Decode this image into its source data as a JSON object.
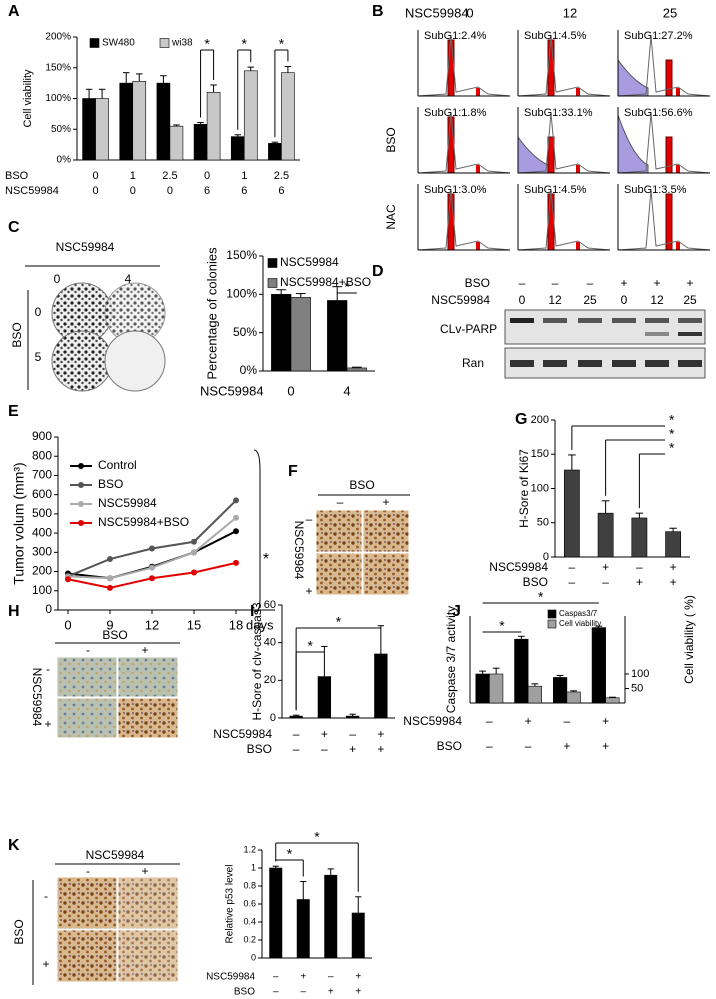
{
  "panels": [
    "A",
    "B",
    "C",
    "D",
    "E",
    "F",
    "G",
    "H",
    "I",
    "J",
    "K"
  ],
  "flow_cytometry": {
    "treatment": "NSC59984",
    "doses": [
      0,
      12,
      25
    ],
    "row_labels": [
      "BSO",
      "NAC"
    ],
    "subg1": [
      [
        "SubG1:2.4%",
        "SubG1:4.5%",
        "SubG1:27.2%"
      ],
      [
        "SubG1:1.8%",
        "SubG1:33.1%",
        "SubG1:56.6%"
      ],
      [
        "SubG1:3.0%",
        "SubG1:4.5%",
        "SubG1:3.5%"
      ]
    ]
  },
  "colony_images": {
    "top_label": "NSC59984",
    "col_labels": [
      0,
      4
    ],
    "side_label": "BSO",
    "row_labels": [
      0,
      5
    ]
  },
  "western_blot": {
    "rows": [
      {
        "label": "BSO",
        "values": [
          "–",
          "–",
          "–",
          "+",
          "+",
          "+"
        ]
      },
      {
        "label": "NSC59984",
        "values": [
          0,
          12,
          25,
          0,
          12,
          25
        ]
      }
    ],
    "bands": [
      "CLv-PARP",
      "Ran"
    ]
  },
  "ihc_ki67": {
    "top_label": "BSO",
    "col_labels": [
      "–",
      "+"
    ],
    "side_label": "NSC59984",
    "row_labels": [
      "–",
      "+"
    ]
  },
  "ihc_caspase3": {
    "top_label": "BSO",
    "col_labels": [
      "-",
      "+"
    ],
    "side_label": "NSC59984",
    "row_labels": [
      "-",
      "+"
    ]
  },
  "ihc_p53": {
    "top_label": "NSC59984",
    "col_labels": [
      "-",
      "+"
    ],
    "side_label": "BSO",
    "row_labels": [
      "-",
      "+"
    ]
  },
  "chart_data": [
    {
      "type": "bar",
      "ylabel": "Cell viability",
      "ylim": [
        0,
        200
      ],
      "yticks": [
        {
          "value": 0,
          "label": "0%"
        },
        {
          "value": 50,
          "label": "50%"
        },
        {
          "value": 100,
          "label": "100%"
        },
        {
          "value": 150,
          "label": "150%"
        },
        {
          "value": 200,
          "label": "200%"
        }
      ],
      "series": [
        {
          "name": "SW480",
          "color": "#000000",
          "values": [
            100,
            125,
            125,
            58,
            38,
            27
          ],
          "errors": [
            15,
            17,
            12,
            3,
            3,
            2
          ]
        },
        {
          "name": "wi38",
          "color": "#c8c8c8",
          "values": [
            100,
            128,
            55,
            110,
            145,
            142
          ],
          "errors": [
            15,
            12,
            2,
            12,
            6,
            10
          ]
        }
      ],
      "category_rows": [
        {
          "name": "BSO",
          "labels": [
            0,
            1,
            2.5,
            0,
            1,
            2.5
          ]
        },
        {
          "name": "NSC59984",
          "labels": [
            0,
            0,
            0,
            6,
            6,
            6
          ]
        }
      ],
      "annotations": [
        "*",
        "*",
        "*"
      ]
    },
    {
      "type": "bar",
      "ylabel": "Percentage of colonies",
      "ylim": [
        0,
        150
      ],
      "yticks": [
        {
          "value": 0,
          "label": "0%"
        },
        {
          "value": 50,
          "label": "50%"
        },
        {
          "value": 100,
          "label": "100%"
        },
        {
          "value": 150,
          "label": "150%"
        }
      ],
      "series": [
        {
          "name": "NSC59984",
          "color": "#000000",
          "values": [
            100,
            92
          ],
          "errors": [
            6,
            18
          ]
        },
        {
          "name": "NSC59984+BSO",
          "color": "#808080",
          "values": [
            96,
            4
          ],
          "errors": [
            5,
            1
          ]
        }
      ],
      "category_rows": [
        {
          "name": "NSC59984",
          "labels": [
            0,
            4
          ]
        }
      ],
      "annotations": [
        "*"
      ]
    },
    {
      "type": "line",
      "ylabel": "Tumor volum (mm³)",
      "xlabel": "days",
      "categories": [
        "0",
        "9",
        "12",
        "15",
        "18"
      ],
      "ylim": [
        0,
        900
      ],
      "yticks": [
        0,
        100,
        200,
        300,
        400,
        500,
        600,
        700,
        800,
        900
      ],
      "legend": "upper left",
      "series": [
        {
          "name": "Control",
          "color": "#000000",
          "values": [
            190,
            165,
            225,
            300,
            410
          ]
        },
        {
          "name": "BSO",
          "color": "#555555",
          "values": [
            175,
            265,
            320,
            355,
            570
          ]
        },
        {
          "name": "NSC59984",
          "color": "#aaaaaa",
          "values": [
            175,
            165,
            220,
            300,
            480
          ]
        },
        {
          "name": "NSC59984+BSO",
          "color": "#e00000",
          "values": [
            160,
            115,
            165,
            195,
            245
          ]
        }
      ],
      "annotations": [
        "*"
      ]
    },
    {
      "type": "bar",
      "ylabel": "H-Sore of Ki67",
      "ylim": [
        0,
        200
      ],
      "yticks": [
        0,
        50,
        100,
        150,
        200
      ],
      "series": [
        {
          "color": "#404040",
          "values": [
            127,
            64,
            57,
            37
          ],
          "errors": [
            22,
            18,
            7,
            5
          ]
        }
      ],
      "category_rows": [
        {
          "name": "NSC59984",
          "labels": [
            "–",
            "+",
            "–",
            "+"
          ]
        },
        {
          "name": "BSO",
          "labels": [
            "–",
            "–",
            "+",
            "+"
          ]
        }
      ],
      "annotations": [
        "*",
        "*",
        "*"
      ]
    },
    {
      "type": "bar",
      "ylabel": "H-Sore of clv-caspas3",
      "ylim": [
        0,
        60
      ],
      "yticks": [
        0,
        20,
        40,
        60
      ],
      "series": [
        {
          "color": "#000000",
          "values": [
            1,
            22,
            1,
            34
          ],
          "errors": [
            0.5,
            16,
            1,
            15
          ]
        }
      ],
      "category_rows": [
        {
          "name": "NSC59984",
          "labels": [
            "–",
            "+",
            "–",
            "+"
          ]
        },
        {
          "name": "BSO",
          "labels": [
            "–",
            "–",
            "+",
            "+"
          ]
        }
      ],
      "annotations": [
        "*",
        "*"
      ]
    },
    {
      "type": "bar",
      "ylabel": "Caspase 3/7 activity",
      "y2label": "Cell viability ( %)",
      "ylim": [
        0,
        3
      ],
      "y2lim": [
        0,
        300
      ],
      "y2ticks": [
        50,
        100
      ],
      "series": [
        {
          "name": "Caspas3/7",
          "color": "#000000",
          "values": [
            1,
            2.2,
            0.88,
            2.6
          ],
          "errors": [
            0.1,
            0.1,
            0.07,
            0.05
          ]
        },
        {
          "name": "Cell viability",
          "color": "#a0a0a0",
          "axis": "y2",
          "values": [
            100,
            58,
            38,
            18
          ],
          "errors": [
            20,
            8,
            4,
            2
          ]
        }
      ],
      "category_rows": [
        {
          "name": "NSC59984",
          "labels": [
            "–",
            "+",
            "–",
            "+"
          ]
        },
        {
          "name": "BSO",
          "labels": [
            "–",
            "–",
            "+",
            "+"
          ]
        }
      ],
      "annotations": [
        "*",
        "*"
      ]
    },
    {
      "type": "bar",
      "ylabel": "Relative p53 level",
      "ylim": [
        0,
        1.2
      ],
      "yticks": [
        0,
        0.2,
        0.4,
        0.6,
        0.8,
        1,
        1.2
      ],
      "series": [
        {
          "color": "#000000",
          "values": [
            1,
            0.65,
            0.92,
            0.5
          ],
          "errors": [
            0.02,
            0.2,
            0.07,
            0.18
          ]
        }
      ],
      "category_rows": [
        {
          "name": "NSC59984",
          "labels": [
            "–",
            "+",
            "–",
            "+"
          ]
        },
        {
          "name": "BSO",
          "labels": [
            "–",
            "–",
            "+",
            "+"
          ]
        }
      ],
      "annotations": [
        "*",
        "*"
      ]
    }
  ]
}
